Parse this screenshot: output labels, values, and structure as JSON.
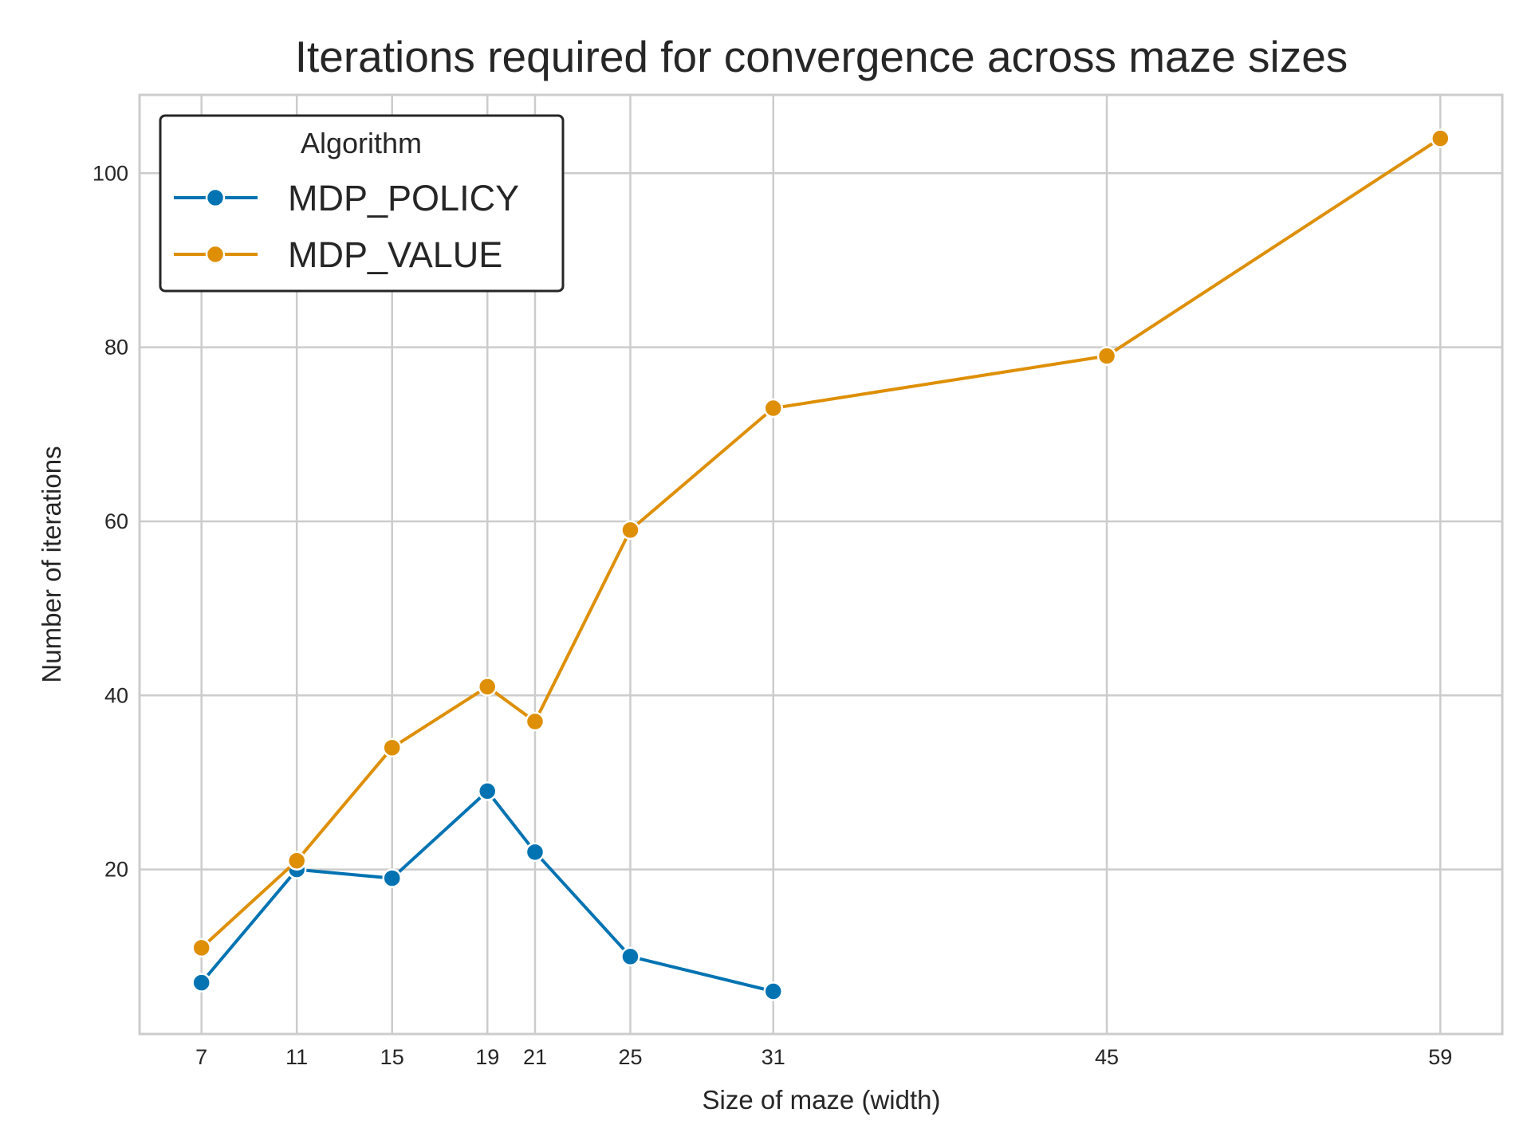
{
  "chart_data": {
    "type": "line",
    "title": "Iterations required for convergence across maze sizes",
    "xlabel": "Size of maze (width)",
    "ylabel": "Number of iterations",
    "xticks": [
      7,
      11,
      15,
      19,
      21,
      25,
      31,
      45,
      59
    ],
    "yticks": [
      20,
      40,
      60,
      80,
      100
    ],
    "xlim": [
      4.4,
      61.6
    ],
    "ylim": [
      1.1,
      109.0
    ],
    "grid": true,
    "legend": {
      "title": "Algorithm",
      "placement": "top-left"
    },
    "series": [
      {
        "name": "MDP_POLICY",
        "color": "#0173b2",
        "x": [
          7,
          11,
          15,
          19,
          21,
          25,
          31
        ],
        "y": [
          7,
          20,
          19,
          29,
          22,
          10,
          6
        ]
      },
      {
        "name": "MDP_VALUE",
        "color": "#de8f05",
        "x": [
          7,
          11,
          15,
          19,
          21,
          25,
          31,
          45,
          59
        ],
        "y": [
          11,
          21,
          34,
          41,
          37,
          59,
          73,
          79,
          104
        ]
      }
    ]
  }
}
